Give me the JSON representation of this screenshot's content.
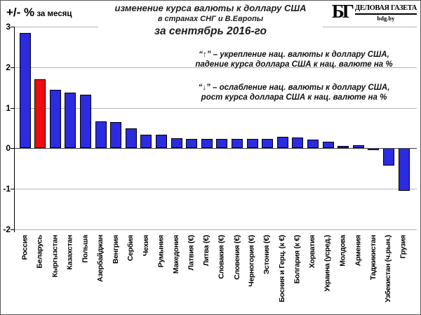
{
  "header": {
    "y_axis_unit_main": "+/- %",
    "y_axis_unit_sub": " за месяц",
    "title_line1": "изменение курса валюты к доллару США",
    "title_line2": "в странах СНГ и В.Европы",
    "title_line3": "за сентябрь 2016-го"
  },
  "logo": {
    "monogram": "БГ",
    "name": "ДЕЛОВАЯ ГАЗЕТА",
    "site": "bdg.by"
  },
  "annotations": {
    "up_line1": "“↑” – укрепление нац. валюты к доллару США,",
    "up_line2": "падение курса доллара США к нац. валюте на %",
    "down_line1": "“↓” – ослабление нац. валюты к доллару США,",
    "down_line2": "рост курса доллара США к нац. валюте на %"
  },
  "colors": {
    "bar_blue": "#2b2bdf",
    "bar_red": "#ee0c0c",
    "grid": "#b3b3b3",
    "zero_line": "#3d3d3d",
    "axis": "#000000"
  },
  "chart_data": {
    "type": "bar",
    "title": "изменение курса валюты к доллару США в странах СНГ и В.Европы за сентябрь 2016-го",
    "ylabel": "+/- % за месяц",
    "xlabel": "",
    "ylim": [
      -2,
      3
    ],
    "yticks": [
      3,
      2,
      1,
      0,
      -1,
      -2
    ],
    "grid": true,
    "legend": "none",
    "highlight_index": 1,
    "categories": [
      "Россия",
      "Беларусь",
      "Кыргызстан",
      "Казахстан",
      "Польша",
      "Азербайджан",
      "Венгрия",
      "Сербия",
      "Чехия",
      "Румыния",
      "Македония",
      "Латвия (€)",
      "Литва (€)",
      "Словакия (€)",
      "Словения (€)",
      "Черногория (€)",
      "Эстония (€)",
      "Босния и Герц. (к €)",
      "Болгария (к €)",
      "Хорватия",
      "Украина (усред.)",
      "Молдова",
      "Армения",
      "Таджикистан",
      "Узбекистан (ч.рын.)",
      "Грузия"
    ],
    "values": [
      2.85,
      1.71,
      1.44,
      1.37,
      1.33,
      0.67,
      0.64,
      0.49,
      0.34,
      0.33,
      0.25,
      0.24,
      0.24,
      0.24,
      0.24,
      0.24,
      0.24,
      0.28,
      0.26,
      0.21,
      0.17,
      0.06,
      0.08,
      -0.04,
      -0.42,
      -1.05
    ]
  }
}
